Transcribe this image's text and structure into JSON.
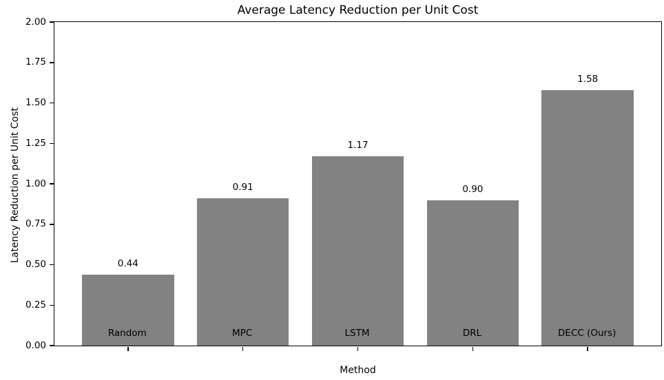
{
  "chart_data": {
    "type": "bar",
    "title": "Average Latency Reduction per Unit Cost",
    "xlabel": "Method",
    "ylabel": "Latency Reduction per Unit Cost",
    "categories": [
      "Random",
      "MPC",
      "LSTM",
      "DRL",
      "DECC (Ours)"
    ],
    "values": [
      0.44,
      0.91,
      1.17,
      0.9,
      1.58
    ],
    "value_labels": [
      "0.44",
      "0.91",
      "1.17",
      "0.90",
      "1.58"
    ],
    "yticks": [
      "0.00",
      "0.25",
      "0.50",
      "0.75",
      "1.00",
      "1.25",
      "1.50",
      "1.75",
      "2.00"
    ],
    "ylim": [
      0,
      2.0
    ],
    "bar_color": "#828282",
    "spine_color": "#000000",
    "background_color": "#ffffff",
    "grid": false,
    "legend": null,
    "bar_width_ratio": 0.8,
    "axis_margin": 0.05
  }
}
